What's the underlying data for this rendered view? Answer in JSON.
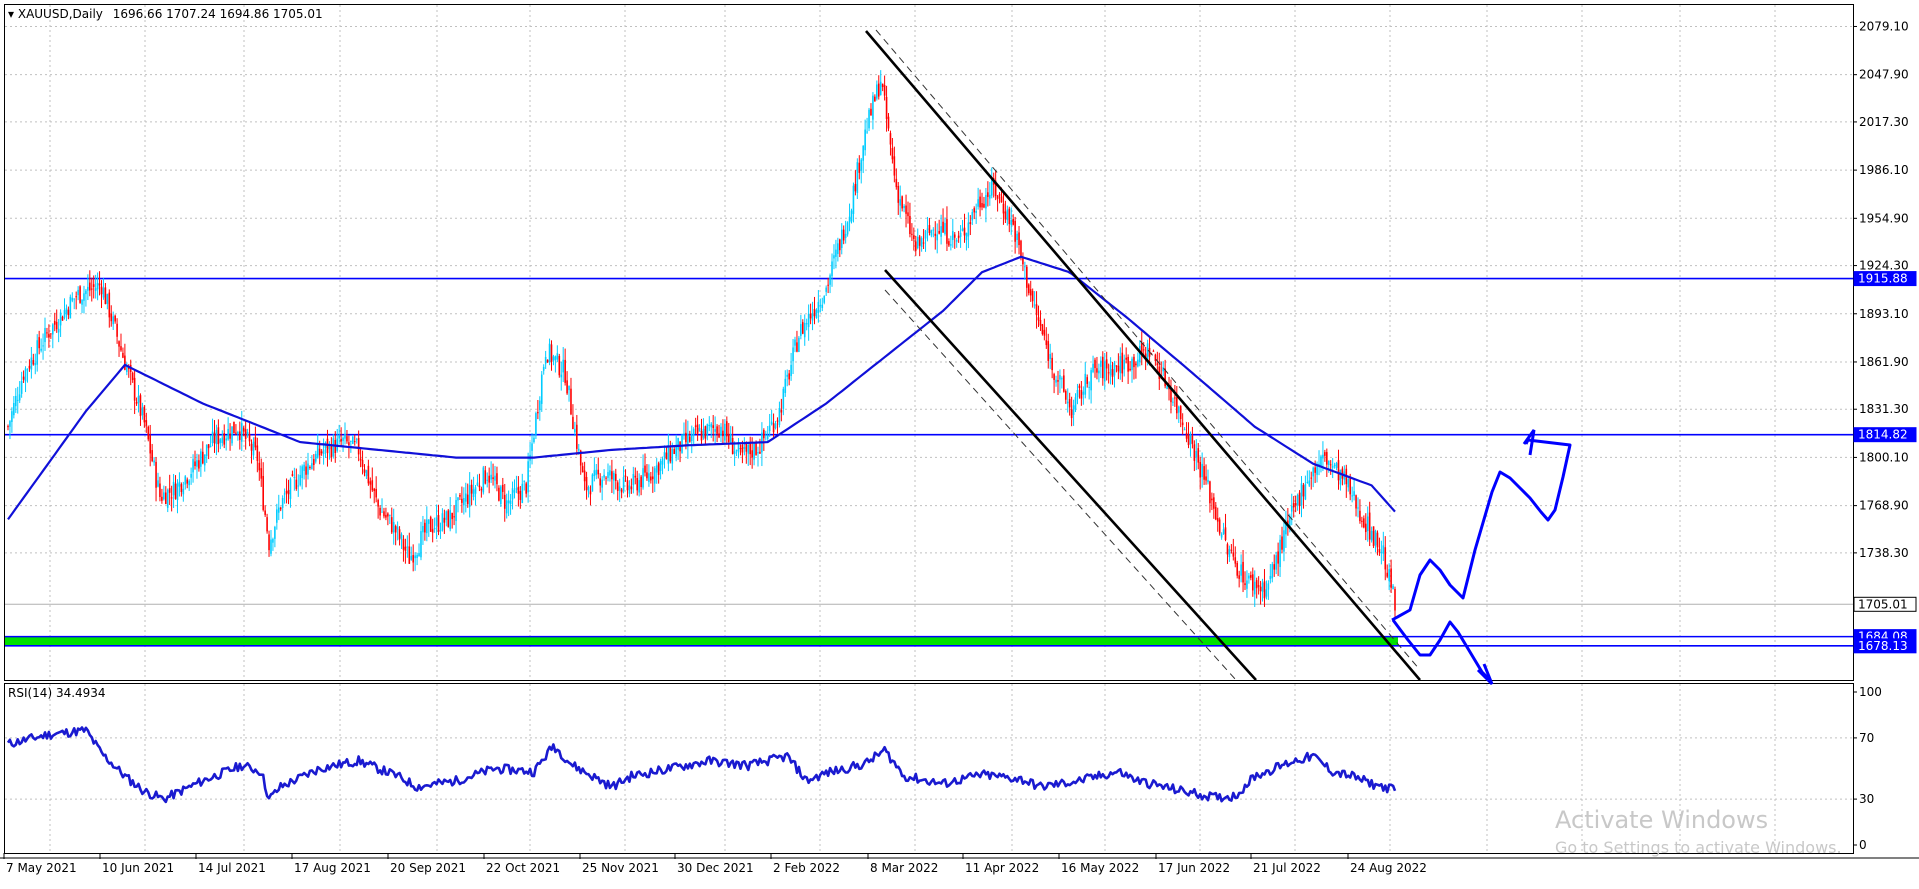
{
  "chart_header": {
    "title": "XAUUSD,Daily",
    "ohlc": "1696.66 1707.24 1694.86 1705.01"
  },
  "rsi_header": "RSI(14) 34.4934",
  "price_axis": {
    "ticks": [
      "2079.10",
      "2047.90",
      "2017.30",
      "1986.10",
      "1954.90",
      "1924.30",
      "1893.10",
      "1861.90",
      "1831.30",
      "1800.10",
      "1768.90",
      "1738.30"
    ],
    "ylim": [
      1656,
      2093
    ]
  },
  "rsi_axis": {
    "ticks": [
      "100",
      "70",
      "30",
      "0"
    ]
  },
  "date_axis": {
    "labels": [
      "7 May 2021",
      "10 Jun 2021",
      "14 Jul 2021",
      "17 Aug 2021",
      "20 Sep 2021",
      "22 Oct 2021",
      "25 Nov 2021",
      "30 Dec 2021",
      "2 Feb 2022",
      "8 Mar 2022",
      "11 Apr 2022",
      "16 May 2022",
      "17 Jun 2022",
      "21 Jul 2022",
      "24 Aug 2022"
    ]
  },
  "levels": [
    {
      "price": 1915.88,
      "label": "1915.88",
      "kind": "resistance"
    },
    {
      "price": 1814.82,
      "label": "1814.82",
      "kind": "resistance"
    },
    {
      "price": 1705.01,
      "label": "1705.01",
      "kind": "current"
    },
    {
      "price": 1684.08,
      "label": "1684.08",
      "kind": "support"
    },
    {
      "price": 1678.13,
      "label": "1678.13",
      "kind": "support"
    }
  ],
  "watermark": {
    "line1": "Activate Windows",
    "line2": "Go to Settings to activate Windows."
  },
  "colors": {
    "bull": "#00ccff",
    "bear": "#ff0000",
    "level": "#0000ff",
    "ma": "#1010d8",
    "support_zone": "#00e000",
    "rsi": "#1a1ad0",
    "grid": "#c0c0c0"
  },
  "chart_data": {
    "type": "candlestick",
    "symbol": "XAUUSD",
    "timeframe": "Daily",
    "price_anchors": [
      [
        0,
        1820
      ],
      [
        8,
        1855
      ],
      [
        20,
        1880
      ],
      [
        35,
        1905
      ],
      [
        48,
        1912
      ],
      [
        58,
        1870
      ],
      [
        70,
        1822
      ],
      [
        78,
        1775
      ],
      [
        86,
        1780
      ],
      [
        96,
        1795
      ],
      [
        106,
        1812
      ],
      [
        118,
        1820
      ],
      [
        128,
        1800
      ],
      [
        134,
        1745
      ],
      [
        140,
        1770
      ],
      [
        152,
        1793
      ],
      [
        162,
        1805
      ],
      [
        172,
        1810
      ],
      [
        180,
        1805
      ],
      [
        190,
        1768
      ],
      [
        198,
        1755
      ],
      [
        206,
        1735
      ],
      [
        216,
        1755
      ],
      [
        226,
        1760
      ],
      [
        236,
        1775
      ],
      [
        246,
        1790
      ],
      [
        256,
        1770
      ],
      [
        266,
        1782
      ],
      [
        276,
        1870
      ],
      [
        286,
        1855
      ],
      [
        296,
        1780
      ],
      [
        306,
        1790
      ],
      [
        318,
        1780
      ],
      [
        330,
        1790
      ],
      [
        342,
        1805
      ],
      [
        354,
        1815
      ],
      [
        366,
        1820
      ],
      [
        376,
        1800
      ],
      [
        386,
        1808
      ],
      [
        396,
        1830
      ],
      [
        406,
        1880
      ],
      [
        420,
        1910
      ],
      [
        432,
        1960
      ],
      [
        440,
        2010
      ],
      [
        448,
        2045
      ],
      [
        456,
        1975
      ],
      [
        466,
        1935
      ],
      [
        476,
        1950
      ],
      [
        488,
        1940
      ],
      [
        498,
        1965
      ],
      [
        506,
        1975
      ],
      [
        516,
        1950
      ],
      [
        526,
        1900
      ],
      [
        536,
        1860
      ],
      [
        546,
        1830
      ],
      [
        556,
        1855
      ],
      [
        566,
        1858
      ],
      [
        576,
        1862
      ],
      [
        586,
        1870
      ],
      [
        596,
        1845
      ],
      [
        606,
        1815
      ],
      [
        616,
        1780
      ],
      [
        626,
        1740
      ],
      [
        636,
        1720
      ],
      [
        646,
        1715
      ],
      [
        656,
        1752
      ],
      [
        666,
        1785
      ],
      [
        676,
        1800
      ],
      [
        686,
        1785
      ],
      [
        696,
        1760
      ],
      [
        706,
        1738
      ],
      [
        712,
        1705
      ]
    ],
    "moving_average_anchors": [
      [
        0,
        1760
      ],
      [
        40,
        1830
      ],
      [
        60,
        1860
      ],
      [
        100,
        1835
      ],
      [
        150,
        1810
      ],
      [
        190,
        1805
      ],
      [
        230,
        1800
      ],
      [
        270,
        1800
      ],
      [
        310,
        1805
      ],
      [
        350,
        1808
      ],
      [
        390,
        1810
      ],
      [
        420,
        1835
      ],
      [
        450,
        1865
      ],
      [
        480,
        1895
      ],
      [
        500,
        1920
      ],
      [
        520,
        1930
      ],
      [
        545,
        1920
      ],
      [
        575,
        1890
      ],
      [
        605,
        1858
      ],
      [
        640,
        1820
      ],
      [
        670,
        1796
      ],
      [
        700,
        1782
      ],
      [
        712,
        1765
      ]
    ],
    "rsi_anchors": [
      [
        0,
        66
      ],
      [
        20,
        72
      ],
      [
        40,
        75
      ],
      [
        48,
        60
      ],
      [
        60,
        45
      ],
      [
        70,
        35
      ],
      [
        80,
        30
      ],
      [
        100,
        42
      ],
      [
        120,
        52
      ],
      [
        130,
        48
      ],
      [
        134,
        30
      ],
      [
        140,
        38
      ],
      [
        160,
        50
      ],
      [
        180,
        55
      ],
      [
        200,
        45
      ],
      [
        210,
        38
      ],
      [
        230,
        42
      ],
      [
        250,
        50
      ],
      [
        270,
        48
      ],
      [
        280,
        65
      ],
      [
        290,
        52
      ],
      [
        300,
        45
      ],
      [
        310,
        38
      ],
      [
        320,
        45
      ],
      [
        340,
        50
      ],
      [
        360,
        55
      ],
      [
        380,
        52
      ],
      [
        400,
        58
      ],
      [
        410,
        42
      ],
      [
        420,
        47
      ],
      [
        440,
        53
      ],
      [
        450,
        62
      ],
      [
        460,
        45
      ],
      [
        480,
        40
      ],
      [
        500,
        46
      ],
      [
        520,
        43
      ],
      [
        530,
        38
      ],
      [
        550,
        42
      ],
      [
        570,
        48
      ],
      [
        580,
        42
      ],
      [
        600,
        36
      ],
      [
        620,
        31
      ],
      [
        630,
        32
      ],
      [
        640,
        45
      ],
      [
        660,
        55
      ],
      [
        670,
        58
      ],
      [
        680,
        48
      ],
      [
        690,
        45
      ],
      [
        700,
        40
      ],
      [
        712,
        36
      ]
    ],
    "bar_count": 713
  }
}
